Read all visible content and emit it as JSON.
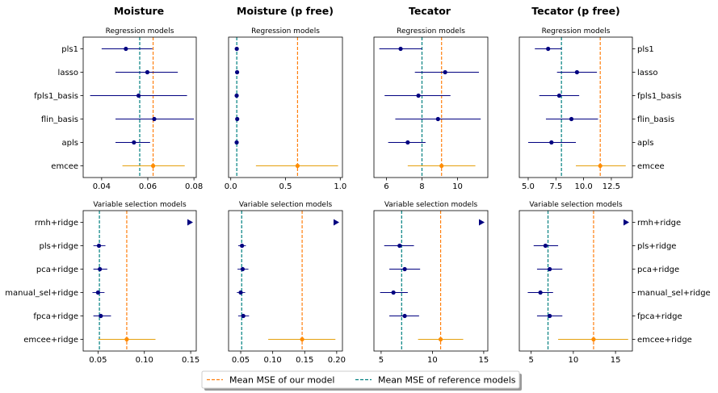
{
  "colors": {
    "ours": "#ff7f0e",
    "ours_point": "#ff8c00",
    "ours_bar": "#e5a00d",
    "reference": "#008080",
    "points": "#000080",
    "axes": "#000000"
  },
  "columns": [
    {
      "title": "Moisture"
    },
    {
      "title": "Moisture (p free)"
    },
    {
      "title": "Tecator"
    },
    {
      "title": "Tecator (p free)"
    }
  ],
  "row_titles": [
    "Regression models",
    "Variable selection models"
  ],
  "legend": {
    "ours_label": "Mean MSE of our model",
    "reference_label": "Mean MSE of reference models"
  },
  "chart_data": [
    {
      "type": "scatter",
      "row": 0,
      "col": 0,
      "subtitle": "Regression models",
      "categories": [
        "pls1",
        "lasso",
        "fpls1_basis",
        "flin_basis",
        "apls",
        "emcee"
      ],
      "xlim": [
        0.032,
        0.081
      ],
      "xticks": [
        0.04,
        0.06,
        0.08
      ],
      "xtick_labels": [
        "0.04",
        "0.06",
        "0.08"
      ],
      "ref_mean": 0.0565,
      "our_mean": 0.0623,
      "points": [
        {
          "label": "pls1",
          "value": 0.0505,
          "low": 0.04,
          "high": 0.062
        },
        {
          "label": "lasso",
          "value": 0.0598,
          "low": 0.046,
          "high": 0.073
        },
        {
          "label": "fpls1_basis",
          "value": 0.056,
          "low": 0.035,
          "high": 0.077
        },
        {
          "label": "flin_basis",
          "value": 0.0628,
          "low": 0.046,
          "high": 0.08
        },
        {
          "label": "apls",
          "value": 0.054,
          "low": 0.046,
          "high": 0.061
        }
      ],
      "ours_point": {
        "label": "emcee",
        "value": 0.0623,
        "low": 0.049,
        "high": 0.076
      }
    },
    {
      "type": "scatter",
      "row": 0,
      "col": 1,
      "subtitle": "Regression models",
      "categories": [
        "pls1",
        "lasso",
        "fpls1_basis",
        "flin_basis",
        "apls",
        "emcee"
      ],
      "xlim": [
        -0.02,
        1.02
      ],
      "xticks": [
        0.0,
        0.5,
        1.0
      ],
      "xtick_labels": [
        "0.0",
        "0.5",
        "1.0"
      ],
      "ref_mean": 0.055,
      "our_mean": 0.61,
      "points": [
        {
          "label": "pls1",
          "value": 0.055,
          "low": 0.045,
          "high": 0.065
        },
        {
          "label": "lasso",
          "value": 0.058,
          "low": 0.048,
          "high": 0.068
        },
        {
          "label": "fpls1_basis",
          "value": 0.054,
          "low": 0.044,
          "high": 0.064
        },
        {
          "label": "flin_basis",
          "value": 0.059,
          "low": 0.049,
          "high": 0.069
        },
        {
          "label": "apls",
          "value": 0.054,
          "low": 0.044,
          "high": 0.064
        }
      ],
      "ours_point": {
        "label": "emcee",
        "value": 0.61,
        "low": 0.23,
        "high": 0.98
      }
    },
    {
      "type": "scatter",
      "row": 0,
      "col": 2,
      "subtitle": "Regression models",
      "categories": [
        "pls1",
        "lasso",
        "fpls1_basis",
        "flin_basis",
        "apls",
        "emcee"
      ],
      "xlim": [
        5.3,
        11.7
      ],
      "xticks": [
        6,
        8,
        10
      ],
      "xtick_labels": [
        "6",
        "8",
        "10"
      ],
      "ref_mean": 8.0,
      "our_mean": 9.1,
      "points": [
        {
          "label": "pls1",
          "value": 6.8,
          "low": 5.6,
          "high": 8.0
        },
        {
          "label": "lasso",
          "value": 9.3,
          "low": 7.6,
          "high": 11.2
        },
        {
          "label": "fpls1_basis",
          "value": 7.8,
          "low": 5.9,
          "high": 9.6
        },
        {
          "label": "flin_basis",
          "value": 8.9,
          "low": 6.5,
          "high": 11.3
        },
        {
          "label": "apls",
          "value": 7.2,
          "low": 6.1,
          "high": 8.2
        }
      ],
      "ours_point": {
        "label": "emcee",
        "value": 9.1,
        "low": 7.2,
        "high": 11.0
      }
    },
    {
      "type": "scatter",
      "row": 0,
      "col": 3,
      "subtitle": "Regression models",
      "categories": [
        "pls1",
        "lasso",
        "fpls1_basis",
        "flin_basis",
        "apls",
        "emcee"
      ],
      "xlim": [
        4.2,
        14.4
      ],
      "xticks": [
        5.0,
        7.5,
        10.0,
        12.5
      ],
      "xtick_labels": [
        "5.0",
        "7.5",
        "10.0",
        "12.5"
      ],
      "ref_mean": 8.0,
      "our_mean": 11.5,
      "points": [
        {
          "label": "pls1",
          "value": 6.8,
          "low": 5.6,
          "high": 8.0
        },
        {
          "label": "lasso",
          "value": 9.4,
          "low": 7.6,
          "high": 11.2
        },
        {
          "label": "fpls1_basis",
          "value": 7.8,
          "low": 6.0,
          "high": 9.6
        },
        {
          "label": "flin_basis",
          "value": 8.9,
          "low": 6.6,
          "high": 11.3
        },
        {
          "label": "apls",
          "value": 7.1,
          "low": 5.0,
          "high": 9.3
        }
      ],
      "ours_point": {
        "label": "emcee",
        "value": 11.5,
        "low": 9.3,
        "high": 13.8
      }
    },
    {
      "type": "scatter",
      "row": 1,
      "col": 0,
      "subtitle": "Variable selection models",
      "categories": [
        "rmh+ridge",
        "pls+ridge",
        "pca+ridge",
        "manual_sel+ridge",
        "fpca+ridge",
        "emcee+ridge"
      ],
      "xlim": [
        0.034,
        0.156
      ],
      "xticks": [
        0.05,
        0.1,
        0.15
      ],
      "xtick_labels": [
        "0.05",
        "0.10",
        "0.15"
      ],
      "ref_mean": 0.0515,
      "our_mean": 0.081,
      "offscale": {
        "label": "rmh+ridge",
        "direction": "right"
      },
      "points": [
        {
          "label": "pls+ridge",
          "value": 0.051,
          "low": 0.045,
          "high": 0.058
        },
        {
          "label": "pca+ridge",
          "value": 0.052,
          "low": 0.045,
          "high": 0.06
        },
        {
          "label": "manual_sel+ridge",
          "value": 0.05,
          "low": 0.044,
          "high": 0.057
        },
        {
          "label": "fpca+ridge",
          "value": 0.053,
          "low": 0.045,
          "high": 0.064
        }
      ],
      "ours_point": {
        "label": "emcee+ridge",
        "value": 0.081,
        "low": 0.05,
        "high": 0.112
      }
    },
    {
      "type": "scatter",
      "row": 1,
      "col": 1,
      "subtitle": "Variable selection models",
      "categories": [
        "rmh+ridge",
        "pls+ridge",
        "pca+ridge",
        "manual_sel+ridge",
        "fpca+ridge",
        "emcee+ridge"
      ],
      "xlim": [
        0.031,
        0.209
      ],
      "xticks": [
        0.05,
        0.1,
        0.15,
        0.2
      ],
      "xtick_labels": [
        "0.05",
        "0.10",
        "0.15",
        "0.20"
      ],
      "ref_mean": 0.0515,
      "our_mean": 0.146,
      "offscale": {
        "label": "rmh+ridge",
        "direction": "right"
      },
      "points": [
        {
          "label": "pls+ridge",
          "value": 0.052,
          "low": 0.046,
          "high": 0.058
        },
        {
          "label": "pca+ridge",
          "value": 0.053,
          "low": 0.045,
          "high": 0.062
        },
        {
          "label": "manual_sel+ridge",
          "value": 0.05,
          "low": 0.044,
          "high": 0.057
        },
        {
          "label": "fpca+ridge",
          "value": 0.054,
          "low": 0.046,
          "high": 0.063
        }
      ],
      "ours_point": {
        "label": "emcee+ridge",
        "value": 0.146,
        "low": 0.093,
        "high": 0.198
      }
    },
    {
      "type": "scatter",
      "row": 1,
      "col": 2,
      "subtitle": "Variable selection models",
      "categories": [
        "rmh+ridge",
        "pls+ridge",
        "pca+ridge",
        "manual_sel+ridge",
        "fpca+ridge",
        "emcee+ridge"
      ],
      "xlim": [
        4.3,
        15.4
      ],
      "xticks": [
        5,
        10,
        15
      ],
      "xtick_labels": [
        "5",
        "10",
        "15"
      ],
      "ref_mean": 7.0,
      "our_mean": 10.8,
      "offscale": {
        "label": "rmh+ridge",
        "direction": "right"
      },
      "points": [
        {
          "label": "pls+ridge",
          "value": 6.8,
          "low": 5.3,
          "high": 8.2
        },
        {
          "label": "pca+ridge",
          "value": 7.3,
          "low": 5.8,
          "high": 8.8
        },
        {
          "label": "manual_sel+ridge",
          "value": 6.2,
          "low": 4.9,
          "high": 7.6
        },
        {
          "label": "fpca+ridge",
          "value": 7.3,
          "low": 5.8,
          "high": 8.7
        }
      ],
      "ours_point": {
        "label": "emcee+ridge",
        "value": 10.8,
        "low": 8.6,
        "high": 13.0
      }
    },
    {
      "type": "scatter",
      "row": 1,
      "col": 3,
      "subtitle": "Variable selection models",
      "categories": [
        "rmh+ridge",
        "pls+ridge",
        "pca+ridge",
        "manual_sel+ridge",
        "fpca+ridge",
        "emcee+ridge"
      ],
      "xlim": [
        3.6,
        17.0
      ],
      "xticks": [
        5,
        10,
        15
      ],
      "xtick_labels": [
        "5",
        "10",
        "15"
      ],
      "ref_mean": 7.0,
      "our_mean": 12.4,
      "offscale": {
        "label": "rmh+ridge",
        "direction": "right"
      },
      "points": [
        {
          "label": "pls+ridge",
          "value": 6.7,
          "low": 5.3,
          "high": 8.2
        },
        {
          "label": "pca+ridge",
          "value": 7.2,
          "low": 5.7,
          "high": 8.7
        },
        {
          "label": "manual_sel+ridge",
          "value": 6.1,
          "low": 4.6,
          "high": 7.6
        },
        {
          "label": "fpca+ridge",
          "value": 7.2,
          "low": 5.7,
          "high": 8.7
        }
      ],
      "ours_point": {
        "label": "emcee+ridge",
        "value": 12.4,
        "low": 8.2,
        "high": 16.5
      }
    }
  ]
}
